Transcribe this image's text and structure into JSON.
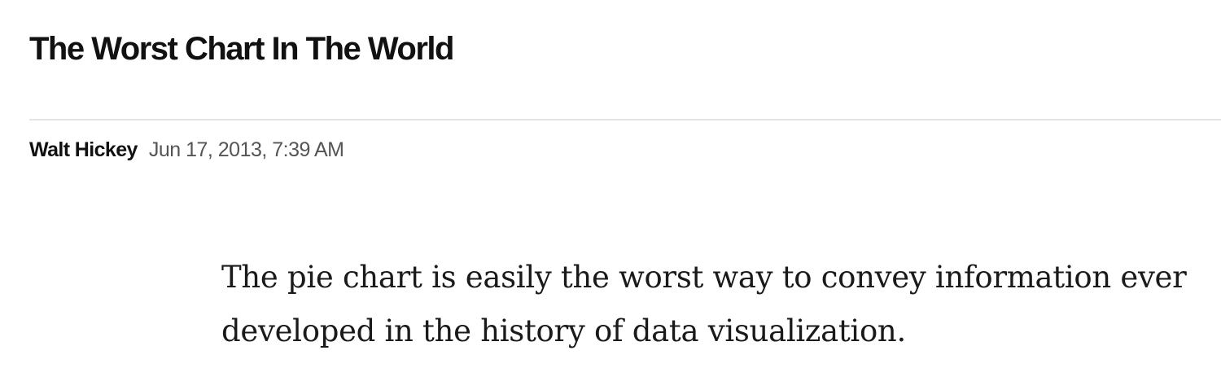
{
  "article": {
    "headline": "The Worst Chart In The World",
    "author": "Walt Hickey",
    "timestamp": "Jun 17, 2013, 7:39 AM",
    "body": [
      "The pie chart is easily the worst way to convey information ever developed in the history of data visualization."
    ]
  },
  "colors": {
    "text": "#111111",
    "meta": "#555555",
    "divider": "#e3e3e3",
    "background": "#ffffff"
  }
}
